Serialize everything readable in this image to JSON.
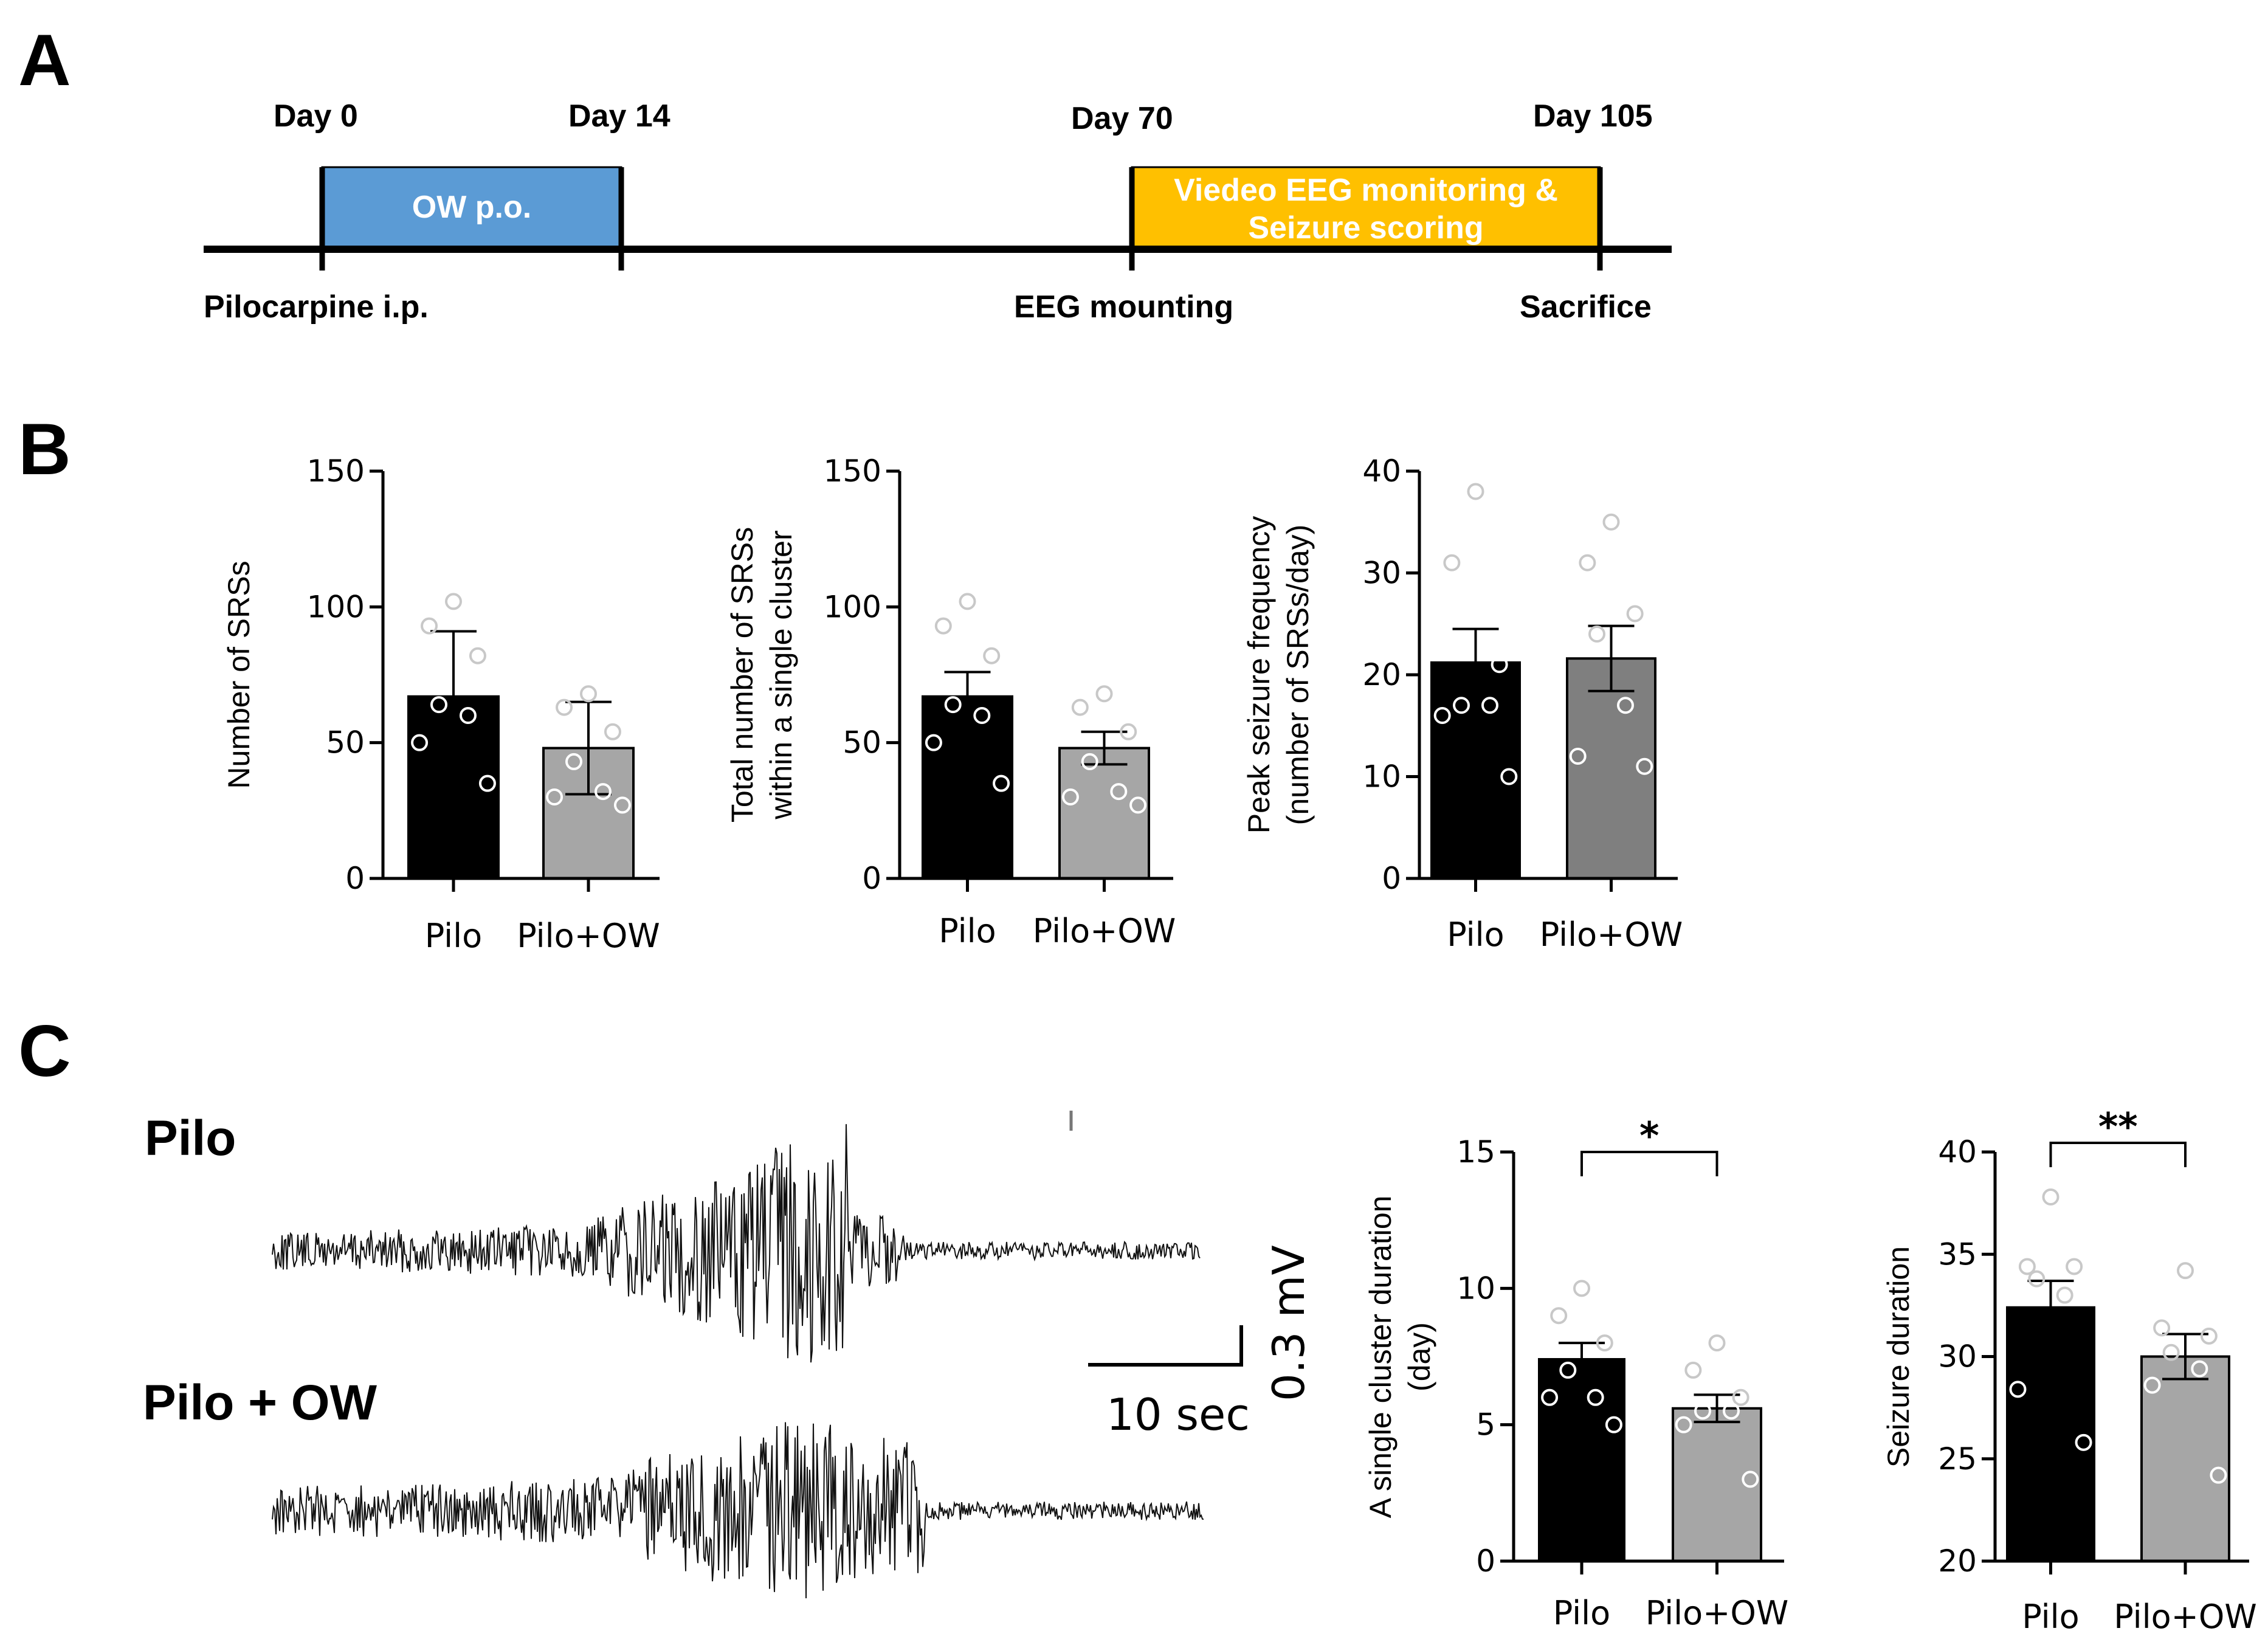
{
  "panels": {
    "A": "A",
    "B": "B",
    "C": "C"
  },
  "timeline": {
    "days": [
      "Day 0",
      "Day 14",
      "Day 70",
      "Day 105"
    ],
    "events": [
      "Pilocarpine i.p.",
      "EEG mounting",
      "Sacrifice"
    ],
    "treatment": "OW p.o.",
    "monitoring": [
      "Viedeo EEG monitoring &",
      "Seizure scoring"
    ],
    "colors": {
      "treatment": "#5B9BD5",
      "monitoring": "#FFC000"
    }
  },
  "traces": {
    "labels": [
      "Pilo",
      "Pilo + OW"
    ],
    "scale_v": "0.3 mV",
    "scale_t": "10 sec"
  },
  "chart_data": [
    {
      "type": "bar",
      "categories": [
        "Pilo",
        "Pilo+OW"
      ],
      "values": [
        67,
        48
      ],
      "errors": [
        24,
        17
      ],
      "ylabel": [
        "Number of SRSs"
      ],
      "ylim": [
        0,
        150
      ],
      "yticks": [
        0,
        50,
        100,
        150
      ],
      "points": [
        [
          102,
          93,
          82,
          64,
          60,
          50,
          35
        ],
        [
          68,
          63,
          54,
          43,
          32,
          30,
          27
        ]
      ],
      "colors": [
        "#000000",
        "#A6A6A6"
      ],
      "significance": ""
    },
    {
      "type": "bar",
      "categories": [
        "Pilo",
        "Pilo+OW"
      ],
      "values": [
        67,
        48
      ],
      "errors": [
        9,
        6
      ],
      "ylabel": [
        "Total number of SRSs",
        "within a single cluster"
      ],
      "ylim": [
        0,
        150
      ],
      "yticks": [
        0,
        50,
        100,
        150
      ],
      "points": [
        [
          102,
          93,
          82,
          64,
          60,
          50,
          35
        ],
        [
          68,
          63,
          54,
          43,
          32,
          30,
          27
        ]
      ],
      "colors": [
        "#000000",
        "#A6A6A6"
      ],
      "significance": ""
    },
    {
      "type": "bar",
      "categories": [
        "Pilo",
        "Pilo+OW"
      ],
      "values": [
        21.2,
        21.6
      ],
      "errors": [
        3.3,
        3.2
      ],
      "ylabel": [
        "Peak seizure frequency",
        "(number of SRSs/day)"
      ],
      "ylim": [
        0,
        40
      ],
      "yticks": [
        0,
        10,
        20,
        30,
        40
      ],
      "points": [
        [
          38,
          31,
          21,
          17,
          17,
          16,
          10
        ],
        [
          35,
          31,
          26,
          24,
          17,
          12,
          11
        ]
      ],
      "colors": [
        "#000000",
        "#7F7F7F"
      ],
      "significance": ""
    },
    {
      "type": "bar",
      "categories": [
        "Pilo",
        "Pilo+OW"
      ],
      "values": [
        7.4,
        5.6
      ],
      "errors": [
        0.6,
        0.5
      ],
      "ylabel": [
        "A single cluster duration",
        "(day)"
      ],
      "ylim": [
        0,
        15
      ],
      "yticks": [
        0,
        5,
        10,
        15
      ],
      "points": [
        [
          10,
          9,
          8,
          7,
          6,
          6,
          5
        ],
        [
          8,
          7,
          6,
          5.5,
          5.5,
          5,
          3
        ]
      ],
      "colors": [
        "#000000",
        "#A6A6A6"
      ],
      "significance": "*"
    },
    {
      "type": "bar",
      "categories": [
        "Pilo",
        "Pilo+OW"
      ],
      "values": [
        32.4,
        30.0
      ],
      "errors": [
        1.3,
        1.1
      ],
      "ylabel": [
        "Seizure duration"
      ],
      "ylim": [
        20,
        40
      ],
      "yticks": [
        20,
        25,
        30,
        35,
        40
      ],
      "points": [
        [
          37.8,
          34.4,
          34.4,
          33.8,
          33.0,
          28.4,
          25.8
        ],
        [
          34.2,
          31.4,
          31.0,
          30.2,
          29.4,
          28.6,
          24.2
        ]
      ],
      "colors": [
        "#000000",
        "#A6A6A6"
      ],
      "significance": "**"
    }
  ]
}
